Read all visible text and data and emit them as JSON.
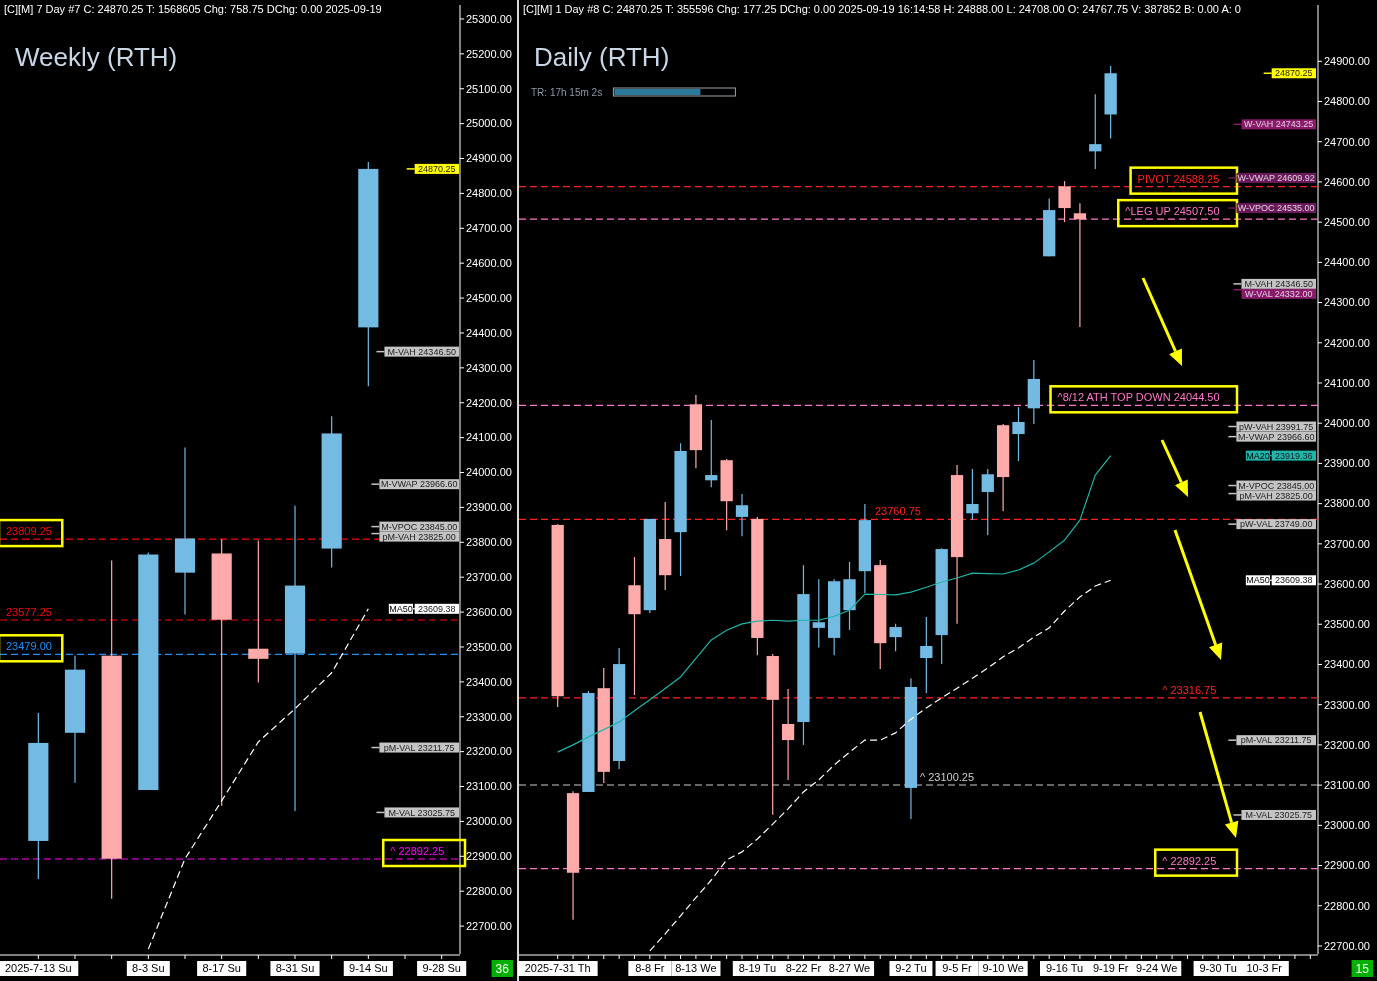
{
  "chart_data": [
    {
      "type": "candlestick",
      "title": "Weekly (RTH)",
      "subtitle": "[C][M]  7 Day  #7 C: 24870.25 T: 1568605 Chg: 758.75 DChg: 0.00 2025-09-19",
      "categories": [
        "2025-7-13 Su",
        null,
        null,
        "8-3 Su",
        null,
        "8-17 Su",
        null,
        "8-31 Su",
        null,
        "9-14 Su",
        null,
        "9-28 Su"
      ],
      "ohlc": [
        [
          22944,
          23311,
          22835,
          23225
        ],
        [
          23254,
          23475,
          23111,
          23435
        ],
        [
          23475,
          23748,
          22778,
          22893
        ],
        [
          23090,
          23771,
          23090,
          23765
        ],
        [
          23713,
          24072,
          23593,
          23811
        ],
        [
          23768,
          23809,
          23045,
          23578
        ],
        [
          23495,
          23805,
          23398,
          23466
        ],
        [
          23481,
          23905,
          23030,
          23676
        ],
        [
          23782,
          24161,
          23728,
          24112
        ],
        [
          24416,
          24890,
          24247,
          24870.25
        ],
        null,
        null
      ],
      "colors": [
        "#74bbe4",
        "#74bbe4",
        "#ffaaaa",
        "#74bbe4",
        "#74bbe4",
        "#ffaaaa",
        "#ffaaaa",
        "#74bbe4",
        "#74bbe4",
        "#74bbe4",
        null,
        null
      ],
      "series": [
        {
          "name": "MA50",
          "type": "line",
          "color": "#ffffff",
          "line_style": "dashed",
          "values": [
            null,
            null,
            null,
            22634,
            22893,
            23059,
            23228,
            23323,
            23426,
            23609.38,
            null,
            null
          ]
        }
      ],
      "ylim": [
        22620,
        25340
      ],
      "yticks": [
        {
          "value": 22700,
          "label": "22700.00"
        },
        {
          "value": 22800,
          "label": "22800.00"
        },
        {
          "value": 22900,
          "label": "22900.00"
        },
        {
          "value": 23000,
          "label": "23000.00"
        },
        {
          "value": 23100,
          "label": "23100.00"
        },
        {
          "value": 23200,
          "label": "23200.00"
        },
        {
          "value": 23300,
          "label": "23300.00"
        },
        {
          "value": 23400,
          "label": "23400.00"
        },
        {
          "value": 23500,
          "label": "23500.00"
        },
        {
          "value": 23600,
          "label": "23600.00"
        },
        {
          "value": 23700,
          "label": "23700.00"
        },
        {
          "value": 23800,
          "label": "23800.00"
        },
        {
          "value": 23900,
          "label": "23900.00"
        },
        {
          "value": 24000,
          "label": "24000.00"
        },
        {
          "value": 24100,
          "label": "24100.00"
        },
        {
          "value": 24200,
          "label": "24200.00"
        },
        {
          "value": 24300,
          "label": "24300.00"
        },
        {
          "value": 24400,
          "label": "24400.00"
        },
        {
          "value": 24500,
          "label": "24500.00"
        },
        {
          "value": 24600,
          "label": "24600.00"
        },
        {
          "value": 24700,
          "label": "24700.00"
        },
        {
          "value": 24800,
          "label": "24800.00"
        },
        {
          "value": 24900,
          "label": "24900.00"
        },
        {
          "value": 25000,
          "label": "25000.00"
        },
        {
          "value": 25100,
          "label": "25100.00"
        },
        {
          "value": 25200,
          "label": "25200.00"
        },
        {
          "value": 25300,
          "label": "25300.00"
        }
      ],
      "ref_lines": [
        {
          "axis": "y",
          "value": 23809.25,
          "label": "23809.25",
          "color": "#ff0000",
          "line_style": "dashed"
        },
        {
          "axis": "y",
          "value": 23577.25,
          "label": "23577.25",
          "color": "#ff0000",
          "line_style": "dashed"
        },
        {
          "axis": "y",
          "value": 23479.0,
          "label": "23479.00",
          "color": "#1e90ff",
          "line_style": "dashed"
        },
        {
          "axis": "y",
          "value": 22892.25,
          "label": "^  22892.25",
          "color": "#ff00ff",
          "line_style": "dashed"
        },
        {
          "axis": "y",
          "value": 24346.5,
          "label": "M-VAH 24346.50",
          "color": "#c4c4c4"
        },
        {
          "axis": "y",
          "value": 23966.6,
          "label": "M-VWAP 23966.60",
          "color": "#c4c4c4"
        },
        {
          "axis": "y",
          "value": 23845.0,
          "label": "M-VPOC 23845.00",
          "color": "#c4c4c4"
        },
        {
          "axis": "y",
          "value": 23825.0,
          "label": "pM-VAH 23825.00",
          "color": "#c4c4c4"
        },
        {
          "axis": "y",
          "value": 23211.75,
          "label": "pM-VAL 23211.75",
          "color": "#c4c4c4"
        },
        {
          "axis": "y",
          "value": 23025.75,
          "label": "M-VAL 23025.75",
          "color": "#c4c4c4"
        },
        {
          "axis": "y",
          "value": 24870.25,
          "label": "24870.25",
          "color": "#ffff00"
        },
        {
          "axis": "y",
          "value": 23609.38,
          "label": "23609.38",
          "color": "#ffffff"
        }
      ],
      "legend": "right",
      "annotations": [
        "36"
      ]
    },
    {
      "type": "candlestick",
      "title": "Daily (RTH)",
      "subtitle": "[C][M]  1 Day  #8 C: 24870.25 T: 355596 Chg: 177.25 DChg: 0.00 2025-09-19 16:14:58 H: 24888.00 L: 24708.00 O: 24767.75 V: 387852 B: 0.00 A: 0",
      "categories": [
        "2025-7-31 Th",
        null,
        null,
        null,
        null,
        null,
        "8-8 Fr",
        null,
        null,
        "8-13 We",
        null,
        null,
        null,
        "8-19 Tu",
        null,
        null,
        "8-22 Fr",
        null,
        null,
        "8-27 We",
        null,
        null,
        null,
        "9-2 Tu",
        null,
        null,
        "9-5 Fr",
        null,
        null,
        "9-10 We",
        null,
        null,
        null,
        "9-16 Tu",
        null,
        null,
        "9-19 Fr",
        null,
        null,
        "9-24 We",
        null,
        null,
        null,
        "9-30 Tu",
        null,
        null,
        "10-3 Fr",
        null,
        null,
        null
      ],
      "ohlc": [
        [
          23747,
          23749,
          23294,
          23321
        ],
        [
          23080,
          23085,
          22765,
          22882
        ],
        [
          23083,
          23334,
          23083,
          23329
        ],
        [
          23341,
          23391,
          23105,
          23133
        ],
        [
          23160,
          23441,
          23140,
          23401
        ],
        [
          23597,
          23667,
          23324,
          23525
        ],
        [
          23535,
          23762,
          23528,
          23762
        ],
        [
          23712,
          23804,
          23585,
          23622
        ],
        [
          23729,
          23950,
          23620,
          23931
        ],
        [
          24047,
          24070,
          23888,
          23933
        ],
        [
          23858,
          24008,
          23841,
          23871
        ],
        [
          23908,
          23911,
          23734,
          23806
        ],
        [
          23767,
          23824,
          23719,
          23796
        ],
        [
          23762,
          23767,
          23423,
          23466
        ],
        [
          23421,
          23426,
          23026,
          23312
        ],
        [
          23252,
          23339,
          23113,
          23212
        ],
        [
          23257,
          23647,
          23200,
          23575
        ],
        [
          23491,
          23612,
          23442,
          23505
        ],
        [
          23466,
          23612,
          23423,
          23607
        ],
        [
          23535,
          23655,
          23486,
          23612
        ],
        [
          23632,
          23799,
          23578,
          23759
        ],
        [
          23647,
          23660,
          23389,
          23453
        ],
        [
          23468,
          23501,
          23433,
          23493
        ],
        [
          23093,
          23366,
          23016,
          23344
        ],
        [
          23416,
          23518,
          23329,
          23446
        ],
        [
          23473,
          23689,
          23401,
          23687
        ],
        [
          23871,
          23896,
          23501,
          23667
        ],
        [
          23776,
          23886,
          23759,
          23799
        ],
        [
          23829,
          23886,
          23722,
          23873
        ],
        [
          23995,
          23998,
          23781,
          23866
        ],
        [
          23973,
          24040,
          23906,
          24003
        ],
        [
          24037,
          24157,
          23998,
          24110
        ],
        [
          24415,
          24559,
          24415,
          24530
        ],
        [
          24589,
          24602,
          24500,
          24535
        ],
        [
          24522,
          24547,
          24239,
          24507
        ],
        [
          24676,
          24818,
          24632,
          24694
        ],
        [
          24767.75,
          24888,
          24708,
          24870.25
        ],
        null,
        null,
        null,
        null,
        null,
        null,
        null,
        null,
        null,
        null,
        null,
        null,
        null
      ],
      "colors": [
        "#ffaaaa",
        "#ffaaaa",
        "#74bbe4",
        "#ffaaaa",
        "#74bbe4",
        "#ffaaaa",
        "#74bbe4",
        "#ffaaaa",
        "#74bbe4",
        "#ffaaaa",
        "#74bbe4",
        "#ffaaaa",
        "#74bbe4",
        "#ffaaaa",
        "#ffaaaa",
        "#ffaaaa",
        "#74bbe4",
        "#74bbe4",
        "#74bbe4",
        "#74bbe4",
        "#74bbe4",
        "#ffaaaa",
        "#74bbe4",
        "#74bbe4",
        "#74bbe4",
        "#74bbe4",
        "#ffaaaa",
        "#74bbe4",
        "#74bbe4",
        "#ffaaaa",
        "#74bbe4",
        "#74bbe4",
        "#74bbe4",
        "#ffaaaa",
        "#ffaaaa",
        "#74bbe4",
        "#74bbe4",
        null,
        null,
        null,
        null,
        null,
        null,
        null,
        null,
        null,
        null,
        null,
        null,
        null
      ],
      "series": [
        {
          "name": "MA20",
          "type": "line",
          "color": "#1fb5a8",
          "line_style": "solid",
          "values": [
            23182,
            23200,
            23220,
            23238,
            23257,
            23285,
            23312,
            23340,
            23369,
            23415,
            23461,
            23485,
            23501,
            23508,
            23510,
            23508,
            23510,
            23510,
            23520,
            23535,
            23575,
            23574,
            23573,
            23580,
            23592,
            23605,
            23615,
            23627,
            23626,
            23625,
            23635,
            23652,
            23680,
            23709,
            23759,
            23871,
            23919.36,
            null,
            null,
            null,
            null,
            null,
            null,
            null,
            null,
            null,
            null,
            null,
            null,
            null
          ]
        },
        {
          "name": "MA50",
          "type": "line",
          "color": "#ffffff",
          "line_style": "dashed",
          "values": [
            null,
            null,
            null,
            null,
            null,
            null,
            22688,
            22730,
            22775,
            22820,
            22864,
            22914,
            22934,
            22966,
            23003,
            23041,
            23083,
            23113,
            23150,
            23182,
            23212,
            23212,
            23230,
            23264,
            23292,
            23317,
            23341,
            23366,
            23391,
            23419,
            23441,
            23468,
            23491,
            23533,
            23568,
            23595,
            23609.38,
            null,
            null,
            null,
            null,
            null,
            null,
            null,
            null,
            null,
            null,
            null,
            null,
            null
          ]
        }
      ],
      "ylim": [
        22680,
        25040
      ],
      "yticks": [
        {
          "value": 22700,
          "label": "22700.00"
        },
        {
          "value": 22800,
          "label": "22800.00"
        },
        {
          "value": 22900,
          "label": "22900.00"
        },
        {
          "value": 23000,
          "label": "23000.00"
        },
        {
          "value": 23100,
          "label": "23100.00"
        },
        {
          "value": 23200,
          "label": "23200.00"
        },
        {
          "value": 23300,
          "label": "23300.00"
        },
        {
          "value": 23400,
          "label": "23400.00"
        },
        {
          "value": 23500,
          "label": "23500.00"
        },
        {
          "value": 23600,
          "label": "23600.00"
        },
        {
          "value": 23700,
          "label": "23700.00"
        },
        {
          "value": 23800,
          "label": "23800.00"
        },
        {
          "value": 23900,
          "label": "23900.00"
        },
        {
          "value": 24000,
          "label": "24000.00"
        },
        {
          "value": 24100,
          "label": "24100.00"
        },
        {
          "value": 24200,
          "label": "24200.00"
        },
        {
          "value": 24300,
          "label": "24300.00"
        },
        {
          "value": 24400,
          "label": "24400.00"
        },
        {
          "value": 24500,
          "label": "24500.00"
        },
        {
          "value": 24600,
          "label": "24600.00"
        },
        {
          "value": 24700,
          "label": "24700.00"
        },
        {
          "value": 24800,
          "label": "24800.00"
        },
        {
          "value": 24900,
          "label": "24900.00"
        }
      ],
      "ref_lines": [
        {
          "axis": "y",
          "value": 24588.25,
          "label": "PIVOT  24588.25",
          "color": "#ff2020",
          "line_style": "dashed"
        },
        {
          "axis": "y",
          "value": 24507.5,
          "label": "^LEG UP  24507.50",
          "color": "#ff77c8",
          "line_style": "dashed"
        },
        {
          "axis": "y",
          "value": 24044.5,
          "label": "^8/12 ATH TOP DOWN  24044.50",
          "color": "#ff77c8",
          "line_style": "dashed"
        },
        {
          "axis": "y",
          "value": 23760.75,
          "label": "23760.75",
          "color": "#ff2020",
          "line_style": "dashed"
        },
        {
          "axis": "y",
          "value": 23316.75,
          "label": "^  23316.75",
          "color": "#ff2020",
          "line_style": "dashed"
        },
        {
          "axis": "y",
          "value": 23100.25,
          "label": "^  23100.25",
          "color": "#cccccc",
          "line_style": "dashed"
        },
        {
          "axis": "y",
          "value": 22892.25,
          "label": "^  22892.25",
          "color": "#ff77c8",
          "line_style": "dashed"
        },
        {
          "axis": "y",
          "value": 24743.25,
          "label": "W-VAH 24743.25",
          "color": "#8a1a6a"
        },
        {
          "axis": "y",
          "value": 24609.92,
          "label": "W-VWAP 24609.92",
          "color": "#6a1a5a"
        },
        {
          "axis": "y",
          "value": 24535.0,
          "label": "W-VPOC 24535.00",
          "color": "#6a1a5a"
        },
        {
          "axis": "y",
          "value": 24346.5,
          "label": "M-VAH 24346.50",
          "color": "#c4c4c4"
        },
        {
          "axis": "y",
          "value": 24332.0,
          "label": "W-VAL 24332.00",
          "color": "#8a1a6a"
        },
        {
          "axis": "y",
          "value": 23991.75,
          "label": "pW-VAH 23991.75",
          "color": "#c4c4c4"
        },
        {
          "axis": "y",
          "value": 23966.6,
          "label": "M-VWAP 23966.60",
          "color": "#c4c4c4"
        },
        {
          "axis": "y",
          "value": 23845.0,
          "label": "M-VPOC 23845.00",
          "color": "#c4c4c4"
        },
        {
          "axis": "y",
          "value": 23825.0,
          "label": "pM-VAH 23825.00",
          "color": "#c4c4c4"
        },
        {
          "axis": "y",
          "value": 23749.0,
          "label": "pW-VAL 23749.00",
          "color": "#c4c4c4"
        },
        {
          "axis": "y",
          "value": 23211.75,
          "label": "pM-VAL 23211.75",
          "color": "#c4c4c4"
        },
        {
          "axis": "y",
          "value": 23025.75,
          "label": "M-VAL 23025.75",
          "color": "#c4c4c4"
        },
        {
          "axis": "y",
          "value": 24870.25,
          "label": "24870.25",
          "color": "#ffff00"
        },
        {
          "axis": "y",
          "value": 23919.36,
          "label": "23919.36",
          "color": "#1fb5a8"
        },
        {
          "axis": "y",
          "value": 23609.38,
          "label": "23609.38",
          "color": "#ffffff"
        }
      ],
      "legend": "right",
      "annotations": [
        "TR: 17h 15m 2s",
        "15"
      ]
    }
  ]
}
